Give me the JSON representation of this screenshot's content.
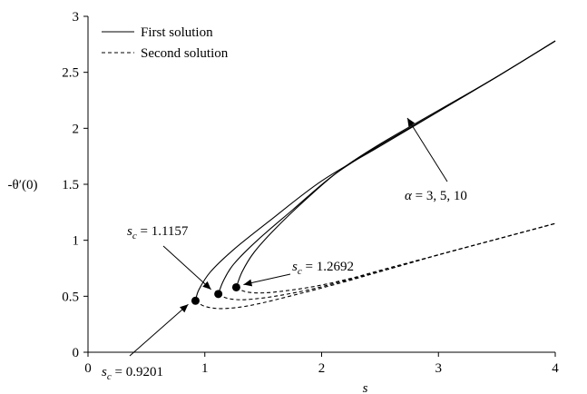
{
  "chart_data": {
    "type": "line",
    "title": "",
    "xlabel": "s",
    "ylabel": "-θ′(0)",
    "xlim": [
      0,
      4
    ],
    "ylim": [
      0,
      3
    ],
    "x_ticks": [
      "0",
      "1",
      "2",
      "3",
      "4"
    ],
    "y_ticks": [
      "0",
      "0.5",
      "1",
      "1.5",
      "2",
      "2.5",
      "3"
    ],
    "grid": false,
    "legend": {
      "placement": "top-left",
      "entries": [
        {
          "label": "First solution",
          "style": "solid"
        },
        {
          "label": "Second solution",
          "style": "dashed"
        }
      ]
    },
    "series": [
      {
        "group": "First solution",
        "alpha": 3,
        "style": "solid",
        "x": [
          0.9201,
          0.95,
          1.05,
          1.25,
          1.55,
          2.0,
          2.5,
          3.0,
          3.5,
          4.0
        ],
        "y": [
          0.46,
          0.56,
          0.72,
          0.92,
          1.17,
          1.53,
          1.84,
          2.15,
          2.46,
          2.78
        ]
      },
      {
        "group": "First solution",
        "alpha": 5,
        "style": "solid",
        "x": [
          1.1157,
          1.16,
          1.25,
          1.45,
          1.75,
          2.1,
          2.5,
          3.0,
          3.5,
          4.0
        ],
        "y": [
          0.52,
          0.64,
          0.79,
          1.0,
          1.27,
          1.58,
          1.85,
          2.15,
          2.46,
          2.78
        ]
      },
      {
        "group": "First solution",
        "alpha": 10,
        "style": "solid",
        "x": [
          1.2692,
          1.32,
          1.42,
          1.6,
          1.85,
          2.15,
          2.5,
          3.0,
          3.5,
          4.0
        ],
        "y": [
          0.58,
          0.72,
          0.89,
          1.1,
          1.35,
          1.62,
          1.86,
          2.16,
          2.46,
          2.78
        ]
      },
      {
        "group": "Second solution",
        "alpha": 3,
        "style": "dashed",
        "x": [
          0.9201,
          1.0,
          1.15,
          1.4,
          1.8,
          2.2,
          2.6,
          3.0,
          3.5,
          4.0
        ],
        "y": [
          0.46,
          0.41,
          0.39,
          0.42,
          0.52,
          0.63,
          0.75,
          0.87,
          1.01,
          1.15
        ]
      },
      {
        "group": "Second solution",
        "alpha": 5,
        "style": "dashed",
        "x": [
          1.1157,
          1.2,
          1.35,
          1.6,
          1.9,
          2.2,
          2.6,
          3.0,
          3.5,
          4.0
        ],
        "y": [
          0.52,
          0.48,
          0.47,
          0.5,
          0.56,
          0.64,
          0.75,
          0.87,
          1.01,
          1.15
        ]
      },
      {
        "group": "Second solution",
        "alpha": 10,
        "style": "dashed",
        "x": [
          1.2692,
          1.35,
          1.5,
          1.7,
          1.95,
          2.25,
          2.6,
          3.0,
          3.5,
          4.0
        ],
        "y": [
          0.58,
          0.54,
          0.53,
          0.55,
          0.59,
          0.66,
          0.76,
          0.87,
          1.01,
          1.15
        ]
      }
    ],
    "critical_points": [
      {
        "x": 0.9201,
        "y": 0.46,
        "label_var": "s",
        "label_sub": "c",
        "label_value": " = 0.9201"
      },
      {
        "x": 1.1157,
        "y": 0.52,
        "label_var": "s",
        "label_sub": "c",
        "label_value": " = 1.1157"
      },
      {
        "x": 1.2692,
        "y": 0.58,
        "label_var": "s",
        "label_sub": "c",
        "label_value": " = 1.2692"
      }
    ],
    "alpha_annotation": {
      "var": "α",
      "text": " = 3, 5, 10"
    }
  }
}
